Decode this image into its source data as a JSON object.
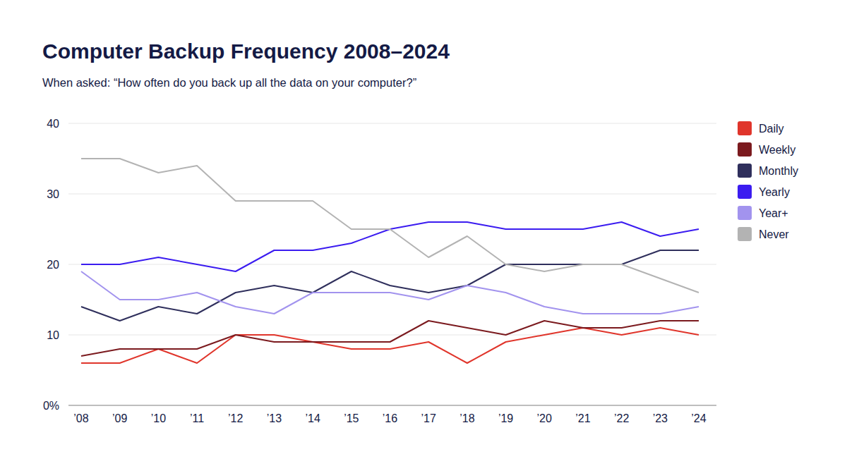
{
  "chart_data": {
    "type": "line",
    "title": "Computer Backup Frequency 2008–2024",
    "subtitle": "When asked: “How often do you back up all the data on your computer?”",
    "categories": [
      "’08",
      "’09",
      "’10",
      "’11",
      "’12",
      "’13",
      "’14",
      "’15",
      "’16",
      "’17",
      "’18",
      "’19",
      "’20",
      "’21",
      "’22",
      "’23",
      "’24"
    ],
    "series": [
      {
        "name": "Daily",
        "color": "#e0352b",
        "values": [
          6,
          6,
          8,
          6,
          10,
          10,
          9,
          8,
          8,
          9,
          6,
          9,
          10,
          11,
          10,
          11,
          10
        ]
      },
      {
        "name": "Weekly",
        "color": "#7b1a1e",
        "values": [
          7,
          8,
          8,
          8,
          10,
          9,
          9,
          9,
          9,
          12,
          11,
          10,
          12,
          11,
          11,
          12,
          12
        ]
      },
      {
        "name": "Monthly",
        "color": "#2f2f5c",
        "values": [
          14,
          12,
          14,
          13,
          16,
          17,
          16,
          19,
          17,
          16,
          17,
          20,
          20,
          20,
          20,
          22,
          22
        ]
      },
      {
        "name": "Yearly",
        "color": "#3b1cf0",
        "values": [
          20,
          20,
          21,
          20,
          19,
          22,
          22,
          23,
          25,
          26,
          26,
          25,
          25,
          25,
          26,
          24,
          25
        ]
      },
      {
        "name": "Year+",
        "color": "#a293ee",
        "values": [
          19,
          15,
          15,
          16,
          14,
          13,
          16,
          16,
          16,
          15,
          17,
          16,
          14,
          13,
          13,
          13,
          14
        ]
      },
      {
        "name": "Never",
        "color": "#b3b3b3",
        "values": [
          35,
          35,
          33,
          34,
          29,
          29,
          29,
          25,
          25,
          21,
          24,
          20,
          19,
          20,
          20,
          18,
          16
        ]
      }
    ],
    "ylim": [
      0,
      40
    ],
    "yticks": [
      {
        "value": 0,
        "label": "0%"
      },
      10,
      20,
      30,
      40
    ],
    "grid": true,
    "legend": "right"
  }
}
